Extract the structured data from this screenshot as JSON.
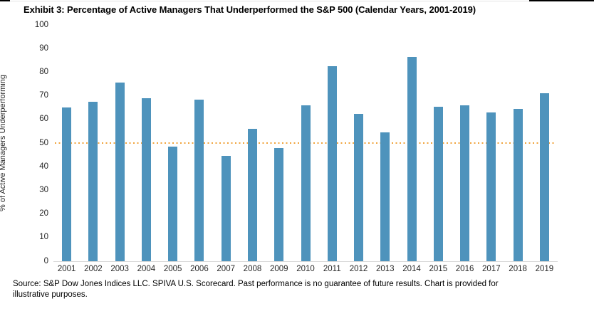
{
  "chart_data": {
    "type": "bar",
    "title": "Exhibit 3: Percentage of Active Managers That Underperformed the S&P 500 (Calendar Years, 2001-2019)",
    "ylabel": "% of Active Managers Underperforming",
    "xlabel": "",
    "categories": [
      "2001",
      "2002",
      "2003",
      "2004",
      "2005",
      "2006",
      "2007",
      "2008",
      "2009",
      "2010",
      "2011",
      "2012",
      "2013",
      "2014",
      "2015",
      "2016",
      "2017",
      "2018",
      "2019"
    ],
    "values": [
      65,
      67.5,
      75.5,
      69,
      48.5,
      68.5,
      44.5,
      56,
      48,
      66,
      82.5,
      62.5,
      54.5,
      86.5,
      65.5,
      66,
      63,
      64.5,
      71
    ],
    "ylim": [
      0,
      100
    ],
    "yticks": [
      100,
      90,
      80,
      70,
      60,
      50,
      40,
      30,
      20,
      10,
      0
    ],
    "grid": false,
    "legend": "none",
    "bar_color": "#4E93BC",
    "reference_line": {
      "value": 50,
      "style": "dotted",
      "color": "#F0A33C"
    }
  },
  "source": {
    "line1": "Source: S&P Dow Jones Indices LLC. SPIVA U.S. Scorecard. Past performance is no guarantee of future results. Chart is provided for",
    "line2": "illustrative purposes."
  }
}
